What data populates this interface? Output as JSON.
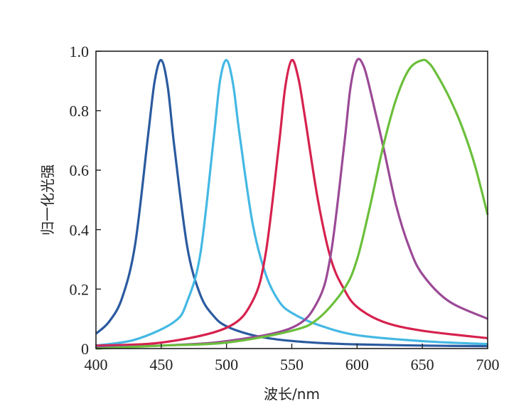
{
  "chart_data": {
    "type": "line",
    "title": "",
    "xlabel": "波长/nm",
    "ylabel": "归一化光强",
    "xlim": [
      400,
      700
    ],
    "ylim": [
      0,
      1.0
    ],
    "x_ticks": [
      "400",
      "450",
      "500",
      "550",
      "600",
      "650",
      "700"
    ],
    "y_ticks": [
      "0",
      "0.2",
      "0.4",
      "0.6",
      "0.8",
      "1.0"
    ],
    "grid": false,
    "legend": "none",
    "series": [
      {
        "color": "#2b5aa0",
        "x": [
          400,
          410,
          420,
          430,
          440,
          445,
          450,
          455,
          460,
          470,
          480,
          490,
          500,
          520,
          540,
          560,
          580,
          600,
          650,
          700
        ],
        "y": [
          0.05,
          0.09,
          0.17,
          0.35,
          0.72,
          0.9,
          0.97,
          0.88,
          0.68,
          0.34,
          0.18,
          0.11,
          0.075,
          0.045,
          0.03,
          0.022,
          0.017,
          0.014,
          0.01,
          0.008
        ]
      },
      {
        "color": "#44b8e4",
        "x": [
          400,
          430,
          460,
          470,
          480,
          490,
          495,
          500,
          505,
          510,
          520,
          530,
          540,
          550,
          570,
          600,
          650,
          700
        ],
        "y": [
          0.01,
          0.03,
          0.09,
          0.16,
          0.32,
          0.7,
          0.9,
          0.97,
          0.89,
          0.72,
          0.42,
          0.25,
          0.16,
          0.12,
          0.08,
          0.045,
          0.025,
          0.015
        ]
      },
      {
        "color": "#d6224e",
        "x": [
          400,
          450,
          500,
          520,
          530,
          540,
          545,
          550,
          555,
          560,
          570,
          580,
          590,
          600,
          620,
          650,
          700
        ],
        "y": [
          0.01,
          0.02,
          0.07,
          0.16,
          0.32,
          0.68,
          0.88,
          0.97,
          0.91,
          0.78,
          0.5,
          0.3,
          0.2,
          0.14,
          0.09,
          0.06,
          0.035
        ]
      },
      {
        "color": "#9b4a96",
        "x": [
          400,
          450,
          500,
          550,
          570,
          580,
          590,
          595,
          600,
          605,
          610,
          620,
          630,
          640,
          650,
          670,
          700
        ],
        "y": [
          0.005,
          0.01,
          0.025,
          0.07,
          0.16,
          0.32,
          0.68,
          0.88,
          0.97,
          0.95,
          0.87,
          0.68,
          0.48,
          0.34,
          0.25,
          0.16,
          0.1
        ]
      },
      {
        "color": "#6bbf3b",
        "x": [
          400,
          450,
          500,
          550,
          570,
          590,
          600,
          610,
          620,
          630,
          640,
          650,
          655,
          660,
          670,
          680,
          690,
          700
        ],
        "y": [
          0.0,
          0.01,
          0.02,
          0.06,
          0.1,
          0.2,
          0.3,
          0.48,
          0.68,
          0.84,
          0.94,
          0.97,
          0.96,
          0.93,
          0.85,
          0.75,
          0.62,
          0.45
        ]
      }
    ]
  }
}
